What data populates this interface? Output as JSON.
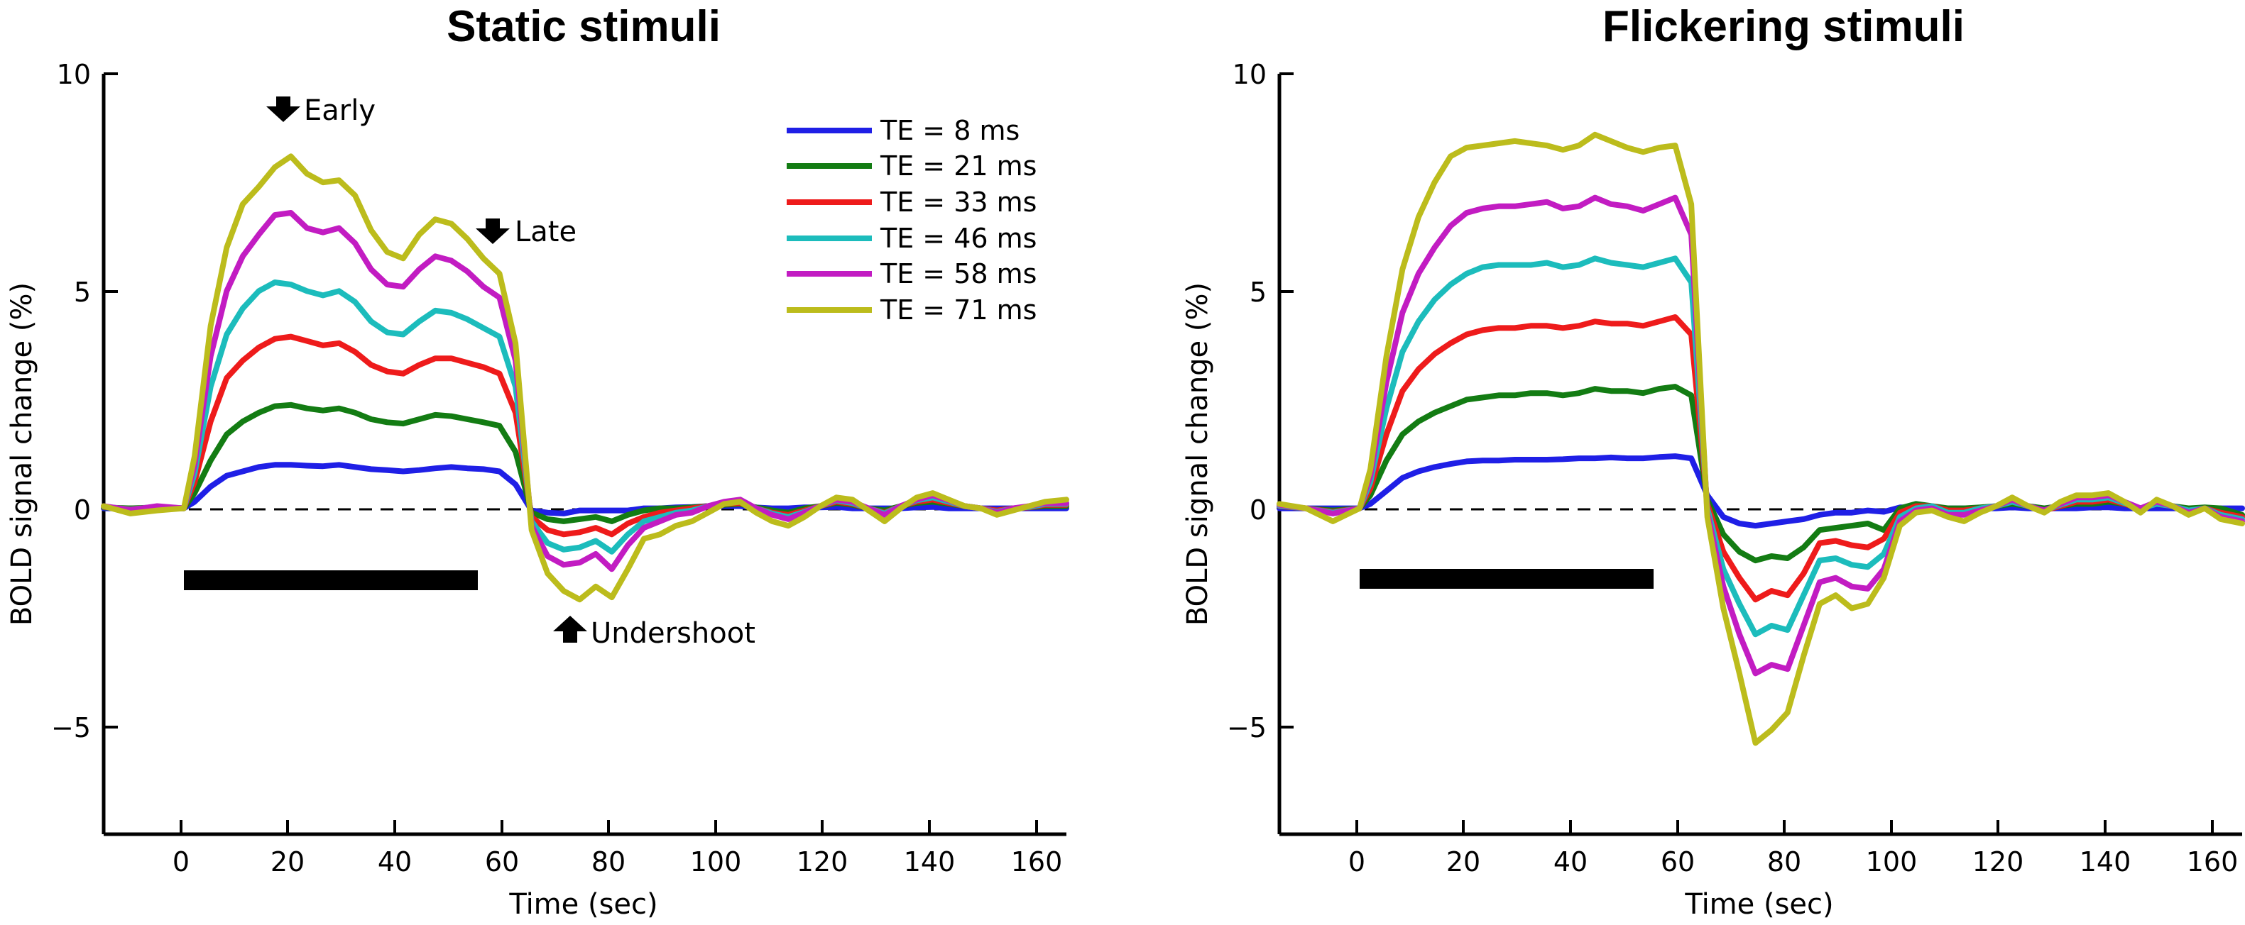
{
  "chart_data": [
    {
      "type": "line",
      "title": "Static stimuli",
      "xlabel": "Time (sec)",
      "ylabel": "BOLD signal change (%)",
      "xlim": [
        -15,
        165
      ],
      "ylim": [
        -7.5,
        10
      ],
      "xticks": [
        "0",
        "20",
        "40",
        "60",
        "80",
        "100",
        "120",
        "140",
        "160"
      ],
      "yticks": [
        "10",
        "5",
        "0",
        "−5"
      ],
      "stimulus_bar": [
        0,
        55
      ],
      "legend": [
        "TE = 8 ms",
        "TE = 21 ms",
        "TE = 33 ms",
        "TE = 46 ms",
        "TE = 58 ms",
        "TE = 71 ms"
      ],
      "annotations": [
        {
          "text": "Early",
          "x": 20,
          "y": 9.3,
          "arrow": "down"
        },
        {
          "text": "Late",
          "x": 58,
          "y": 6.5,
          "arrow": "down"
        },
        {
          "text": "Undershoot",
          "x": 72,
          "y": -2.8,
          "arrow": "up"
        }
      ],
      "x": [
        -15,
        -10,
        -5,
        0,
        2,
        5,
        8,
        11,
        14,
        17,
        20,
        23,
        26,
        29,
        32,
        35,
        38,
        41,
        44,
        47,
        50,
        53,
        56,
        59,
        62,
        65,
        68,
        71,
        74,
        77,
        80,
        83,
        86,
        89,
        92,
        95,
        98,
        101,
        104,
        107,
        110,
        113,
        116,
        119,
        122,
        125,
        128,
        131,
        134,
        137,
        140,
        143,
        146,
        149,
        152,
        155,
        158,
        161,
        165
      ],
      "series": [
        {
          "name": "TE = 8 ms",
          "color": "#1f1fe6",
          "values": [
            0,
            0,
            0,
            0,
            0.15,
            0.5,
            0.75,
            0.85,
            0.95,
            1.0,
            1.0,
            0.98,
            0.97,
            1.0,
            0.95,
            0.9,
            0.88,
            0.85,
            0.88,
            0.92,
            0.95,
            0.92,
            0.9,
            0.85,
            0.55,
            -0.05,
            -0.1,
            -0.12,
            -0.05,
            -0.05,
            -0.05,
            -0.05,
            0,
            0,
            0.02,
            0.03,
            0.05,
            0.05,
            0.05,
            0.02,
            0,
            0,
            0.02,
            0.02,
            0.03,
            0,
            0,
            0,
            0,
            0.02,
            0.03,
            0,
            0,
            0,
            0,
            0,
            0,
            0,
            0
          ]
        },
        {
          "name": "TE = 21 ms",
          "color": "#137c13",
          "values": [
            0.02,
            0,
            0.02,
            0,
            0.35,
            1.1,
            1.7,
            2.0,
            2.2,
            2.35,
            2.38,
            2.3,
            2.25,
            2.3,
            2.2,
            2.05,
            1.98,
            1.95,
            2.05,
            2.15,
            2.12,
            2.05,
            1.98,
            1.9,
            1.3,
            -0.1,
            -0.25,
            -0.3,
            -0.25,
            -0.2,
            -0.3,
            -0.15,
            -0.05,
            0,
            0,
            0.02,
            0.05,
            0.08,
            0.1,
            0.02,
            -0.05,
            -0.1,
            0,
            0.05,
            0.12,
            0.08,
            0,
            -0.05,
            0.05,
            0.12,
            0.15,
            0.1,
            0.05,
            0,
            -0.05,
            0,
            0.02,
            0.05,
            0.05
          ]
        },
        {
          "name": "TE = 33 ms",
          "color": "#ee1b1b",
          "values": [
            0.03,
            -0.02,
            0.03,
            0,
            0.6,
            2.0,
            3.0,
            3.4,
            3.7,
            3.9,
            3.95,
            3.85,
            3.75,
            3.8,
            3.6,
            3.3,
            3.15,
            3.1,
            3.3,
            3.45,
            3.45,
            3.35,
            3.25,
            3.1,
            2.2,
            -0.2,
            -0.5,
            -0.6,
            -0.55,
            -0.45,
            -0.6,
            -0.35,
            -0.2,
            -0.1,
            -0.05,
            0,
            0.05,
            0.1,
            0.12,
            0,
            -0.1,
            -0.15,
            -0.05,
            0.05,
            0.15,
            0.1,
            0,
            -0.1,
            0.05,
            0.15,
            0.2,
            0.12,
            0.05,
            0,
            -0.05,
            0,
            0.02,
            0.08,
            0.08
          ]
        },
        {
          "name": "TE = 46 ms",
          "color": "#1cbcbc",
          "values": [
            0.04,
            -0.03,
            0.04,
            0,
            0.8,
            2.8,
            4.0,
            4.6,
            5.0,
            5.2,
            5.15,
            5.0,
            4.9,
            5.0,
            4.75,
            4.3,
            4.05,
            4.0,
            4.3,
            4.55,
            4.5,
            4.35,
            4.15,
            3.95,
            2.8,
            -0.3,
            -0.8,
            -0.95,
            -0.9,
            -0.75,
            -1.0,
            -0.6,
            -0.3,
            -0.2,
            -0.1,
            -0.05,
            0.05,
            0.12,
            0.15,
            0,
            -0.12,
            -0.2,
            -0.08,
            0.05,
            0.18,
            0.12,
            0,
            -0.12,
            0.05,
            0.18,
            0.25,
            0.15,
            0.05,
            0,
            -0.08,
            0,
            0.03,
            0.1,
            0.1
          ]
        },
        {
          "name": "TE = 58 ms",
          "color": "#c21cc2",
          "values": [
            0.05,
            -0.04,
            0.05,
            0,
            1.0,
            3.5,
            5.0,
            5.8,
            6.3,
            6.75,
            6.8,
            6.45,
            6.35,
            6.45,
            6.1,
            5.5,
            5.15,
            5.1,
            5.5,
            5.8,
            5.7,
            5.45,
            5.1,
            4.85,
            3.4,
            -0.4,
            -1.1,
            -1.3,
            -1.25,
            -1.05,
            -1.4,
            -0.85,
            -0.45,
            -0.3,
            -0.15,
            -0.1,
            0.05,
            0.15,
            0.2,
            0,
            -0.15,
            -0.25,
            -0.1,
            0.05,
            0.2,
            0.15,
            0,
            -0.15,
            0.05,
            0.2,
            0.3,
            0.18,
            0.05,
            0,
            -0.1,
            0,
            0.05,
            0.12,
            0.12
          ]
        },
        {
          "name": "TE = 71 ms",
          "color": "#bcbc1c",
          "values": [
            0.05,
            -0.12,
            -0.05,
            0,
            1.2,
            4.2,
            6.0,
            7.0,
            7.4,
            7.85,
            8.1,
            7.7,
            7.5,
            7.55,
            7.2,
            6.4,
            5.9,
            5.75,
            6.3,
            6.65,
            6.55,
            6.2,
            5.75,
            5.4,
            3.8,
            -0.5,
            -1.5,
            -1.9,
            -2.1,
            -1.8,
            -2.05,
            -1.4,
            -0.7,
            -0.6,
            -0.4,
            -0.3,
            -0.1,
            0.1,
            0.15,
            -0.1,
            -0.3,
            -0.4,
            -0.2,
            0.05,
            0.25,
            0.2,
            -0.05,
            -0.3,
            0,
            0.25,
            0.35,
            0.2,
            0.05,
            0,
            -0.15,
            -0.05,
            0.05,
            0.15,
            0.2
          ]
        }
      ]
    },
    {
      "type": "line",
      "title": "Flickering stimuli",
      "xlabel": "Time (sec)",
      "ylabel": "BOLD signal change (%)",
      "xlim": [
        -15,
        165
      ],
      "ylim": [
        -7.5,
        10
      ],
      "xticks": [
        "0",
        "20",
        "40",
        "60",
        "80",
        "100",
        "120",
        "140",
        "160"
      ],
      "yticks": [
        "10",
        "5",
        "0",
        "−5"
      ],
      "stimulus_bar": [
        0,
        55
      ],
      "x": [
        -15,
        -10,
        -5,
        0,
        2,
        5,
        8,
        11,
        14,
        17,
        20,
        23,
        26,
        29,
        32,
        35,
        38,
        41,
        44,
        47,
        50,
        53,
        56,
        59,
        62,
        65,
        68,
        71,
        74,
        77,
        80,
        83,
        86,
        89,
        92,
        95,
        98,
        101,
        104,
        107,
        110,
        113,
        116,
        119,
        122,
        125,
        128,
        131,
        134,
        137,
        140,
        143,
        146,
        149,
        152,
        155,
        158,
        161,
        165
      ],
      "series": [
        {
          "name": "TE = 8 ms",
          "color": "#1f1fe6",
          "values": [
            0,
            0,
            0,
            0,
            0.1,
            0.4,
            0.7,
            0.85,
            0.95,
            1.02,
            1.08,
            1.1,
            1.1,
            1.12,
            1.12,
            1.12,
            1.13,
            1.15,
            1.15,
            1.17,
            1.15,
            1.15,
            1.18,
            1.2,
            1.15,
            0.3,
            -0.2,
            -0.35,
            -0.4,
            -0.35,
            -0.3,
            -0.25,
            -0.15,
            -0.1,
            -0.1,
            -0.05,
            -0.08,
            0.02,
            0.02,
            0,
            0,
            0,
            0,
            0,
            0.02,
            0,
            0,
            0,
            0,
            0.02,
            0.02,
            0,
            0,
            0,
            0,
            0,
            0,
            0,
            0
          ]
        },
        {
          "name": "TE = 21 ms",
          "color": "#137c13",
          "values": [
            0.05,
            0,
            -0.05,
            0,
            0.3,
            1.1,
            1.7,
            2.0,
            2.2,
            2.35,
            2.5,
            2.55,
            2.6,
            2.6,
            2.65,
            2.65,
            2.6,
            2.65,
            2.75,
            2.7,
            2.7,
            2.65,
            2.75,
            2.8,
            2.6,
            0.2,
            -0.6,
            -1.0,
            -1.2,
            -1.1,
            -1.15,
            -0.9,
            -0.5,
            -0.45,
            -0.4,
            -0.35,
            -0.5,
            0,
            0.1,
            0.05,
            0,
            0,
            0.02,
            0.05,
            0.1,
            0.05,
            0,
            0.05,
            0.1,
            0.1,
            0.15,
            0.1,
            0,
            0.1,
            0.05,
            0,
            0.02,
            0,
            -0.15
          ]
        },
        {
          "name": "TE = 33 ms",
          "color": "#ee1b1b",
          "values": [
            0.05,
            0,
            -0.08,
            0,
            0.45,
            1.7,
            2.7,
            3.2,
            3.55,
            3.8,
            4.0,
            4.1,
            4.15,
            4.15,
            4.2,
            4.2,
            4.15,
            4.2,
            4.3,
            4.25,
            4.25,
            4.2,
            4.3,
            4.4,
            4.0,
            0.1,
            -1.0,
            -1.6,
            -2.1,
            -1.9,
            -2.0,
            -1.5,
            -0.8,
            -0.75,
            -0.85,
            -0.9,
            -0.7,
            -0.1,
            0.05,
            0.05,
            -0.05,
            -0.05,
            0,
            0.05,
            0.15,
            0.05,
            -0.05,
            0.05,
            0.15,
            0.15,
            0.2,
            0.1,
            0,
            0.1,
            0.05,
            -0.05,
            0,
            -0.1,
            -0.2
          ]
        },
        {
          "name": "TE = 46 ms",
          "color": "#1cbcbc",
          "values": [
            0.06,
            0,
            -0.1,
            0,
            0.6,
            2.3,
            3.6,
            4.3,
            4.8,
            5.15,
            5.4,
            5.55,
            5.6,
            5.6,
            5.6,
            5.65,
            5.55,
            5.6,
            5.75,
            5.65,
            5.6,
            5.55,
            5.65,
            5.75,
            5.2,
            0,
            -1.4,
            -2.2,
            -2.9,
            -2.7,
            -2.8,
            -2.0,
            -1.2,
            -1.15,
            -1.3,
            -1.35,
            -1.05,
            -0.2,
            0,
            0.05,
            -0.1,
            -0.1,
            0,
            0.05,
            0.15,
            0.05,
            -0.05,
            0.08,
            0.2,
            0.2,
            0.25,
            0.12,
            0,
            0.1,
            0.05,
            -0.05,
            0,
            -0.15,
            -0.25
          ]
        },
        {
          "name": "TE = 58 ms",
          "color": "#c21cc2",
          "values": [
            0.08,
            0,
            -0.12,
            0,
            0.75,
            2.9,
            4.5,
            5.4,
            6.0,
            6.5,
            6.8,
            6.9,
            6.95,
            6.95,
            7.0,
            7.05,
            6.9,
            6.95,
            7.15,
            7.0,
            6.95,
            6.85,
            7.0,
            7.15,
            6.3,
            -0.1,
            -1.8,
            -2.9,
            -3.8,
            -3.6,
            -3.7,
            -2.7,
            -1.7,
            -1.6,
            -1.8,
            -1.85,
            -1.4,
            -0.3,
            -0.05,
            0,
            -0.15,
            -0.15,
            -0.05,
            0.05,
            0.2,
            0.05,
            -0.05,
            0.1,
            0.25,
            0.25,
            0.3,
            0.15,
            0,
            0.15,
            0.05,
            -0.1,
            0,
            -0.2,
            -0.3
          ]
        },
        {
          "name": "TE = 71 ms",
          "color": "#bcbc1c",
          "values": [
            0.1,
            0,
            -0.3,
            0,
            0.9,
            3.5,
            5.5,
            6.7,
            7.5,
            8.1,
            8.3,
            8.35,
            8.4,
            8.45,
            8.4,
            8.35,
            8.25,
            8.35,
            8.6,
            8.45,
            8.3,
            8.2,
            8.3,
            8.35,
            7.0,
            -0.2,
            -2.3,
            -3.8,
            -5.4,
            -5.1,
            -4.7,
            -3.4,
            -2.2,
            -2.0,
            -2.3,
            -2.2,
            -1.6,
            -0.4,
            -0.1,
            -0.05,
            -0.2,
            -0.3,
            -0.1,
            0.05,
            0.25,
            0.05,
            -0.1,
            0.15,
            0.3,
            0.3,
            0.35,
            0.15,
            -0.1,
            0.2,
            0.05,
            -0.15,
            0,
            -0.25,
            -0.35
          ]
        }
      ]
    }
  ]
}
